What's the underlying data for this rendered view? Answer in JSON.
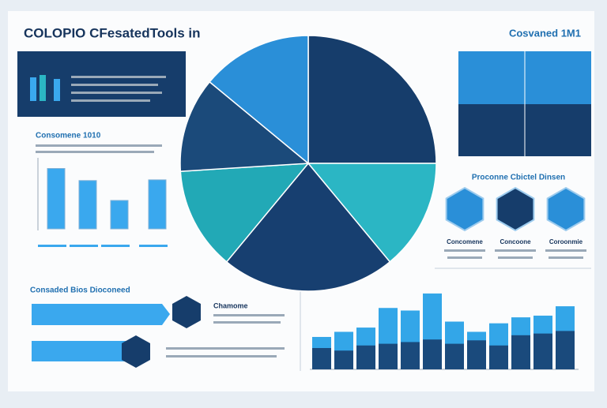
{
  "header": {
    "title": "COLOPIO CFesatedTools in",
    "badge": "Cosvaned 1M1"
  },
  "left_panel": {
    "heading": "Consomene 1010"
  },
  "bar_chart": {
    "color": "#3aa8ee",
    "values": [
      85,
      68,
      40,
      69
    ],
    "ylim": [
      0,
      100
    ]
  },
  "pie": {
    "colors": [
      "#163d6b",
      "#2bb6c4",
      "#173f70",
      "#22a9b6",
      "#1b4a7a",
      "#2a8fd8"
    ],
    "values": [
      25,
      14,
      22,
      13,
      12,
      14
    ]
  },
  "hexagons": {
    "heading": "Proconne Cbictel Dinsen",
    "labels": [
      "Concomene",
      "Concoone",
      "Coroonmie"
    ]
  },
  "bottom_left": {
    "heading": "Consaded Bios Dioconeed",
    "note": "Chamome"
  },
  "bottom_chart": {
    "ylim": [
      0,
      100
    ],
    "series": [
      {
        "color": "#33a6e8",
        "values": [
          38,
          44,
          49,
          72,
          69,
          89,
          56,
          44,
          54,
          61,
          63,
          74
        ]
      },
      {
        "color": "#1a4a7c",
        "values": [
          25,
          22,
          28,
          30,
          32,
          35,
          30,
          34,
          28,
          40,
          42,
          45
        ]
      }
    ]
  }
}
